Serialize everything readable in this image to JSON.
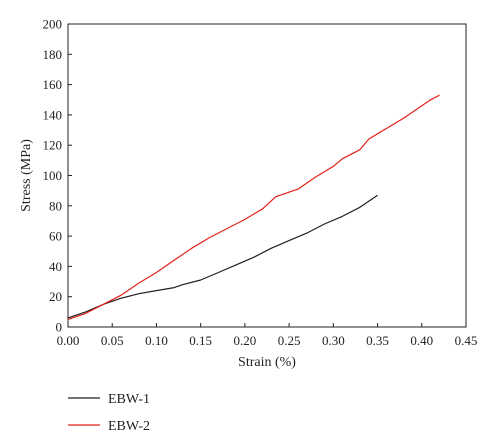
{
  "chart_data": {
    "type": "line",
    "title": "",
    "xlabel": "Strain (%)",
    "ylabel": "Stress (MPa)",
    "xlim": [
      0,
      0.45
    ],
    "ylim": [
      0,
      200
    ],
    "x_ticks": [
      "0.00",
      "0.05",
      "0.10",
      "0.15",
      "0.20",
      "0.25",
      "0.30",
      "0.35",
      "0.40",
      "0.45"
    ],
    "y_ticks": [
      "0",
      "20",
      "40",
      "60",
      "80",
      "100",
      "120",
      "140",
      "160",
      "180",
      "200"
    ],
    "grid": false,
    "legend_position": "bottom-left",
    "series": [
      {
        "name": "EBW-1",
        "color": "#231f20",
        "x": [
          0.0,
          0.02,
          0.04,
          0.06,
          0.08,
          0.1,
          0.12,
          0.13,
          0.15,
          0.17,
          0.19,
          0.21,
          0.23,
          0.25,
          0.27,
          0.29,
          0.31,
          0.33,
          0.35
        ],
        "y": [
          6,
          10,
          15,
          19,
          22,
          24,
          26,
          28,
          31,
          36,
          41,
          46,
          52,
          57,
          62,
          68,
          73,
          79,
          87
        ]
      },
      {
        "name": "EBW-2",
        "color": "#e32119",
        "x": [
          0.0,
          0.02,
          0.04,
          0.06,
          0.08,
          0.1,
          0.12,
          0.14,
          0.16,
          0.18,
          0.2,
          0.22,
          0.235,
          0.24,
          0.26,
          0.28,
          0.3,
          0.31,
          0.33,
          0.34,
          0.36,
          0.38,
          0.4,
          0.41,
          0.42
        ],
        "y": [
          5,
          9,
          15,
          21,
          29,
          36,
          44,
          52,
          59,
          65,
          71,
          78,
          86,
          87,
          91,
          99,
          106,
          111,
          117,
          124,
          131,
          138,
          146,
          150,
          153
        ]
      }
    ]
  }
}
